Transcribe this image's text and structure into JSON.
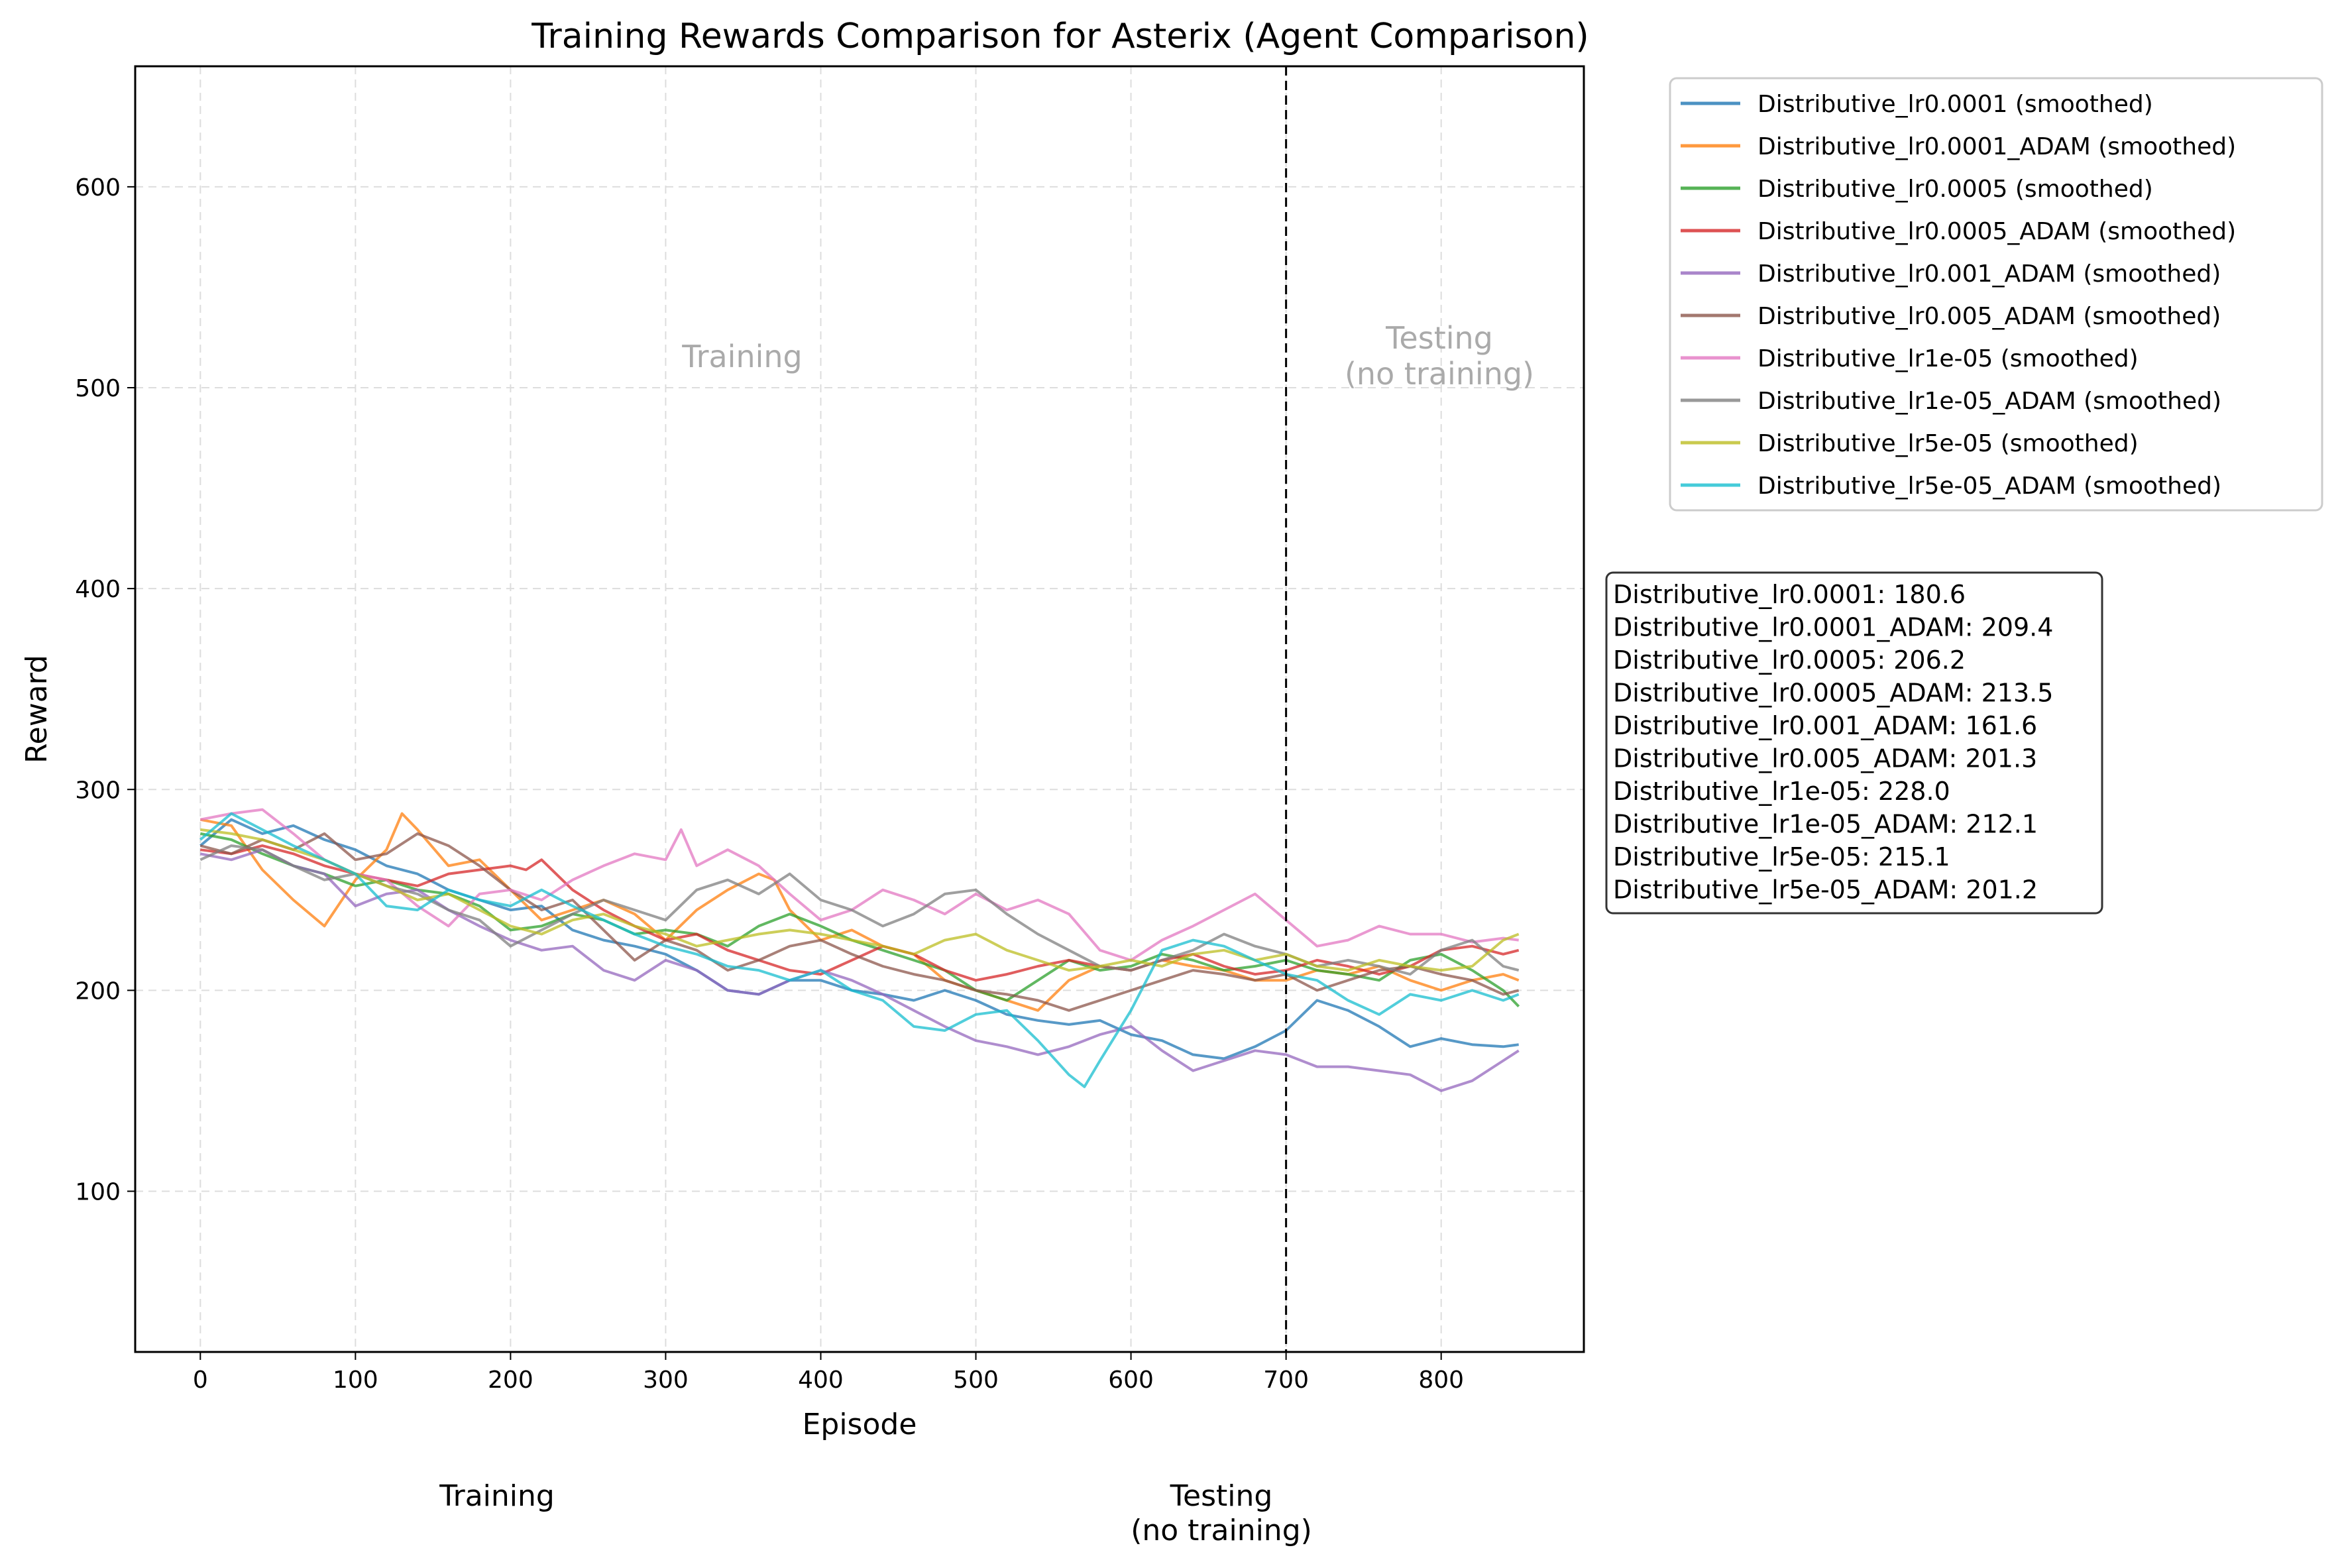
{
  "chart_data": {
    "type": "line",
    "title": "Training Rewards Comparison for Asterix (Agent Comparison)",
    "xlabel": "Episode",
    "ylabel": "Reward",
    "xlim": [
      -42,
      892
    ],
    "ylim": [
      20,
      660
    ],
    "xticks": [
      0,
      100,
      200,
      300,
      400,
      500,
      600,
      700,
      800
    ],
    "yticks": [
      100,
      200,
      300,
      400,
      500,
      600
    ],
    "grid": true,
    "legend_position": "outside-top-right",
    "divider_x": 700,
    "region_labels": {
      "training": "Training",
      "testing_line1": "Testing",
      "testing_line2": "(no training)"
    },
    "below_labels": {
      "training": "Training",
      "testing_line1": "Testing",
      "testing_line2": "(no training)"
    },
    "series": [
      {
        "name": "Distributive_lr0.0001 (smoothed)",
        "color": "#1f77b4",
        "x": [
          0,
          20,
          40,
          60,
          80,
          100,
          120,
          140,
          160,
          180,
          200,
          220,
          240,
          260,
          280,
          300,
          320,
          340,
          360,
          380,
          400,
          420,
          440,
          460,
          480,
          500,
          520,
          540,
          560,
          580,
          600,
          620,
          640,
          660,
          680,
          700,
          720,
          740,
          760,
          780,
          800,
          820,
          840,
          850
        ],
        "y": [
          272,
          285,
          278,
          282,
          275,
          270,
          262,
          258,
          250,
          245,
          240,
          242,
          230,
          225,
          222,
          218,
          210,
          200,
          198,
          205,
          205,
          200,
          198,
          195,
          200,
          195,
          188,
          185,
          183,
          185,
          178,
          175,
          168,
          166,
          172,
          180,
          195,
          190,
          182,
          172,
          176,
          173,
          172,
          173
        ]
      },
      {
        "name": "Distributive_lr0.0001_ADAM (smoothed)",
        "color": "#ff7f0e",
        "x": [
          0,
          20,
          40,
          60,
          80,
          100,
          120,
          130,
          140,
          160,
          180,
          200,
          220,
          240,
          260,
          280,
          300,
          320,
          340,
          360,
          370,
          380,
          400,
          420,
          440,
          460,
          480,
          500,
          520,
          540,
          560,
          580,
          600,
          620,
          640,
          660,
          680,
          700,
          720,
          740,
          760,
          780,
          800,
          820,
          840,
          850
        ],
        "y": [
          285,
          282,
          260,
          245,
          232,
          255,
          270,
          288,
          280,
          262,
          265,
          250,
          235,
          240,
          245,
          238,
          225,
          240,
          250,
          258,
          255,
          240,
          225,
          230,
          222,
          218,
          205,
          200,
          195,
          190,
          205,
          212,
          210,
          215,
          212,
          210,
          205,
          205,
          210,
          208,
          212,
          205,
          200,
          205,
          208,
          205
        ]
      },
      {
        "name": "Distributive_lr0.0005 (smoothed)",
        "color": "#2ca02c",
        "x": [
          0,
          20,
          40,
          60,
          80,
          100,
          120,
          140,
          160,
          180,
          200,
          220,
          240,
          260,
          280,
          300,
          320,
          340,
          360,
          380,
          400,
          420,
          440,
          460,
          480,
          500,
          520,
          540,
          560,
          580,
          600,
          620,
          640,
          660,
          680,
          700,
          720,
          740,
          760,
          780,
          800,
          820,
          840,
          850
        ],
        "y": [
          278,
          275,
          268,
          262,
          258,
          252,
          255,
          250,
          248,
          242,
          230,
          232,
          238,
          235,
          228,
          230,
          228,
          222,
          232,
          238,
          232,
          225,
          220,
          215,
          210,
          200,
          195,
          205,
          215,
          210,
          212,
          218,
          215,
          210,
          212,
          215,
          210,
          208,
          205,
          215,
          218,
          210,
          200,
          192
        ]
      },
      {
        "name": "Distributive_lr0.0005_ADAM (smoothed)",
        "color": "#d62728",
        "x": [
          0,
          20,
          40,
          60,
          80,
          100,
          120,
          140,
          160,
          180,
          200,
          210,
          220,
          240,
          260,
          280,
          300,
          320,
          340,
          360,
          380,
          400,
          420,
          440,
          460,
          480,
          500,
          520,
          540,
          560,
          580,
          600,
          620,
          640,
          660,
          680,
          700,
          720,
          740,
          760,
          780,
          800,
          820,
          840,
          850
        ],
        "y": [
          270,
          268,
          272,
          268,
          262,
          258,
          255,
          252,
          258,
          260,
          262,
          260,
          265,
          250,
          240,
          232,
          225,
          228,
          220,
          215,
          210,
          208,
          215,
          222,
          218,
          210,
          205,
          208,
          212,
          215,
          212,
          210,
          215,
          218,
          212,
          208,
          210,
          215,
          212,
          208,
          212,
          220,
          222,
          218,
          220
        ]
      },
      {
        "name": "Distributive_lr0.001_ADAM (smoothed)",
        "color": "#9467bd",
        "x": [
          0,
          20,
          40,
          60,
          80,
          100,
          120,
          140,
          160,
          180,
          200,
          220,
          240,
          260,
          280,
          300,
          320,
          340,
          360,
          380,
          400,
          420,
          440,
          460,
          480,
          500,
          520,
          540,
          560,
          580,
          600,
          620,
          640,
          660,
          680,
          700,
          720,
          740,
          760,
          780,
          800,
          820,
          840,
          850
        ],
        "y": [
          268,
          265,
          270,
          262,
          258,
          242,
          248,
          250,
          240,
          232,
          225,
          220,
          222,
          210,
          205,
          215,
          210,
          200,
          198,
          205,
          210,
          205,
          198,
          190,
          182,
          175,
          172,
          168,
          172,
          178,
          182,
          170,
          160,
          165,
          170,
          168,
          162,
          162,
          160,
          158,
          150,
          155,
          165,
          170
        ]
      },
      {
        "name": "Distributive_lr0.005_ADAM (smoothed)",
        "color": "#8c564b",
        "x": [
          0,
          20,
          40,
          60,
          80,
          100,
          120,
          140,
          160,
          180,
          200,
          220,
          240,
          260,
          280,
          300,
          320,
          340,
          360,
          380,
          400,
          420,
          440,
          460,
          480,
          500,
          520,
          540,
          560,
          580,
          600,
          620,
          640,
          660,
          680,
          700,
          720,
          740,
          760,
          780,
          800,
          820,
          840,
          850
        ],
        "y": [
          272,
          268,
          275,
          270,
          278,
          265,
          268,
          278,
          272,
          262,
          250,
          240,
          245,
          230,
          215,
          225,
          220,
          210,
          215,
          222,
          225,
          218,
          212,
          208,
          205,
          200,
          198,
          195,
          190,
          195,
          200,
          205,
          210,
          208,
          205,
          208,
          200,
          205,
          210,
          212,
          208,
          205,
          198,
          200
        ]
      },
      {
        "name": "Distributive_lr1e-05 (smoothed)",
        "color": "#e377c2",
        "x": [
          0,
          20,
          40,
          60,
          80,
          100,
          120,
          140,
          160,
          180,
          200,
          220,
          240,
          260,
          280,
          300,
          310,
          320,
          340,
          360,
          380,
          400,
          420,
          440,
          460,
          480,
          500,
          520,
          540,
          560,
          580,
          600,
          620,
          640,
          660,
          680,
          700,
          720,
          740,
          760,
          780,
          800,
          820,
          840,
          850
        ],
        "y": [
          285,
          288,
          290,
          278,
          265,
          258,
          255,
          242,
          232,
          248,
          250,
          245,
          255,
          262,
          268,
          265,
          280,
          262,
          270,
          262,
          248,
          235,
          240,
          250,
          245,
          238,
          248,
          240,
          245,
          238,
          220,
          215,
          225,
          232,
          240,
          248,
          235,
          222,
          225,
          232,
          228,
          228,
          224,
          226,
          225
        ]
      },
      {
        "name": "Distributive_lr1e-05_ADAM (smoothed)",
        "color": "#7f7f7f",
        "x": [
          0,
          20,
          40,
          60,
          80,
          100,
          120,
          140,
          160,
          180,
          200,
          220,
          240,
          260,
          280,
          300,
          320,
          340,
          360,
          380,
          400,
          420,
          440,
          460,
          480,
          500,
          520,
          540,
          560,
          580,
          600,
          620,
          640,
          660,
          680,
          700,
          720,
          740,
          760,
          780,
          800,
          820,
          840,
          850
        ],
        "y": [
          265,
          272,
          270,
          262,
          255,
          258,
          252,
          248,
          240,
          235,
          222,
          230,
          238,
          245,
          240,
          235,
          250,
          255,
          248,
          258,
          245,
          240,
          232,
          238,
          248,
          250,
          238,
          228,
          220,
          212,
          210,
          215,
          220,
          228,
          222,
          218,
          212,
          215,
          212,
          208,
          220,
          225,
          212,
          210
        ]
      },
      {
        "name": "Distributive_lr5e-05 (smoothed)",
        "color": "#bcbd22",
        "x": [
          0,
          20,
          40,
          60,
          80,
          100,
          120,
          140,
          160,
          180,
          200,
          220,
          240,
          260,
          280,
          300,
          320,
          340,
          360,
          380,
          400,
          420,
          440,
          460,
          480,
          500,
          520,
          540,
          560,
          580,
          600,
          620,
          640,
          660,
          680,
          700,
          720,
          740,
          760,
          780,
          800,
          820,
          840,
          850
        ],
        "y": [
          280,
          278,
          275,
          270,
          265,
          258,
          252,
          245,
          248,
          240,
          232,
          228,
          235,
          238,
          232,
          228,
          222,
          225,
          228,
          230,
          228,
          225,
          222,
          218,
          225,
          228,
          220,
          215,
          210,
          212,
          215,
          212,
          218,
          220,
          215,
          218,
          212,
          210,
          215,
          212,
          210,
          212,
          225,
          228
        ]
      },
      {
        "name": "Distributive_lr5e-05_ADAM (smoothed)",
        "color": "#17becf",
        "x": [
          0,
          20,
          40,
          60,
          80,
          100,
          120,
          140,
          160,
          180,
          200,
          220,
          240,
          260,
          280,
          300,
          320,
          340,
          360,
          380,
          400,
          420,
          440,
          460,
          480,
          500,
          520,
          540,
          560,
          570,
          580,
          600,
          620,
          640,
          660,
          680,
          700,
          720,
          740,
          760,
          780,
          800,
          820,
          840,
          850
        ],
        "y": [
          275,
          288,
          280,
          272,
          265,
          258,
          242,
          240,
          250,
          245,
          242,
          250,
          242,
          235,
          228,
          222,
          218,
          212,
          210,
          205,
          210,
          200,
          195,
          182,
          180,
          188,
          190,
          175,
          158,
          152,
          165,
          190,
          220,
          225,
          222,
          215,
          208,
          205,
          195,
          188,
          198,
          195,
          200,
          195,
          198
        ]
      }
    ],
    "final_stats": [
      "Distributive_lr0.0001: 180.6",
      "Distributive_lr0.0001_ADAM: 209.4",
      "Distributive_lr0.0005: 206.2",
      "Distributive_lr0.0005_ADAM: 213.5",
      "Distributive_lr0.001_ADAM: 161.6",
      "Distributive_lr0.005_ADAM: 201.3",
      "Distributive_lr1e-05: 228.0",
      "Distributive_lr1e-05_ADAM: 212.1",
      "Distributive_lr5e-05: 215.1",
      "Distributive_lr5e-05_ADAM: 201.2"
    ]
  }
}
